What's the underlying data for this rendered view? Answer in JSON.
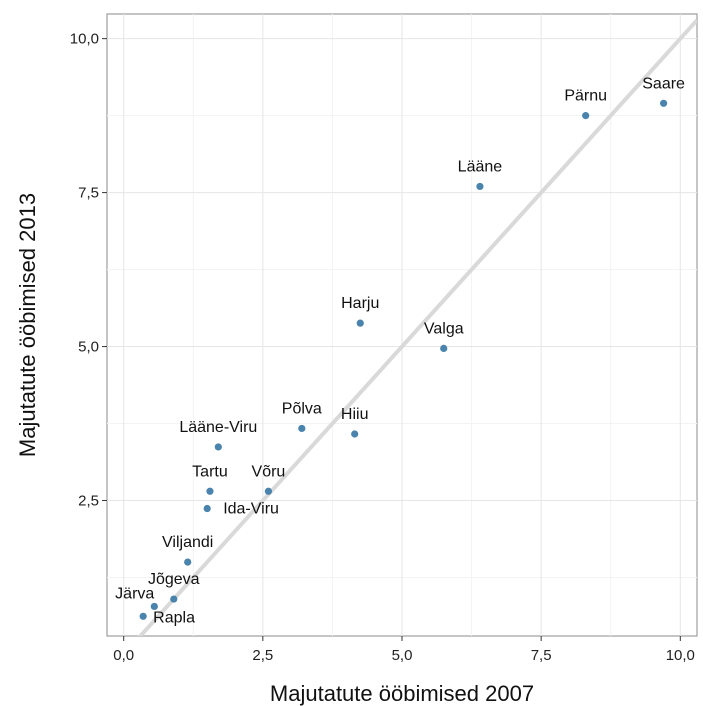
{
  "chart_data": {
    "type": "scatter",
    "title": "",
    "xlabel": "Majutatute ööbimised 2007",
    "ylabel": "Majutatute ööbimised 2013",
    "xlim": [
      -0.3,
      10.3
    ],
    "ylim": [
      0.3,
      10.4
    ],
    "x_ticks": [
      0,
      2.5,
      5,
      7.5,
      10
    ],
    "x_tick_labels": [
      "0,0",
      "2,5",
      "5,0",
      "7,5",
      "10,0"
    ],
    "y_ticks": [
      2.5,
      5,
      7.5,
      10
    ],
    "y_tick_labels": [
      "2,5",
      "5,0",
      "7,5",
      "10,0"
    ],
    "grid": true,
    "reference_line": {
      "type": "identity",
      "color": "#d9d9d9"
    },
    "point_color": "#4a83ac",
    "points": [
      {
        "label": "Saare",
        "x": 9.7,
        "y": 8.95
      },
      {
        "label": "Pärnu",
        "x": 8.3,
        "y": 8.75
      },
      {
        "label": "Lääne",
        "x": 6.4,
        "y": 7.6
      },
      {
        "label": "Harju",
        "x": 4.25,
        "y": 5.38
      },
      {
        "label": "Valga",
        "x": 5.75,
        "y": 4.97
      },
      {
        "label": "Põlva",
        "x": 3.2,
        "y": 3.67
      },
      {
        "label": "Hiiu",
        "x": 4.15,
        "y": 3.58
      },
      {
        "label": "Lääne-Viru",
        "x": 1.7,
        "y": 3.37
      },
      {
        "label": "Tartu",
        "x": 1.55,
        "y": 2.65
      },
      {
        "label": "Võru",
        "x": 2.6,
        "y": 2.65
      },
      {
        "label": "Ida-Viru",
        "x": 1.5,
        "y": 2.37
      },
      {
        "label": "Viljandi",
        "x": 1.15,
        "y": 1.5
      },
      {
        "label": "Jõgeva",
        "x": 0.9,
        "y": 0.9
      },
      {
        "label": "Järva",
        "x": 0.55,
        "y": 0.78
      },
      {
        "label": "Rapla",
        "x": 0.35,
        "y": 0.62
      }
    ]
  }
}
